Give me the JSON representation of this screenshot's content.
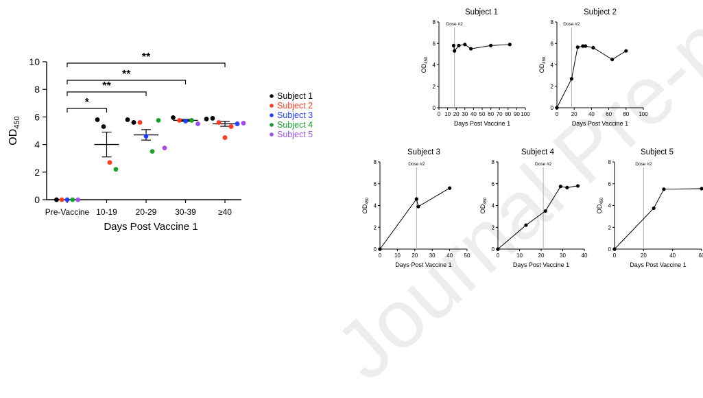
{
  "colors": {
    "subject_1": "#000000",
    "subject_2": "#ff3b1f",
    "subject_3": "#1f3fff",
    "subject_4": "#1aa02a",
    "subject_5": "#a050f0",
    "axis": "#000000",
    "dose_line": "#b0b0b0"
  },
  "watermark": "Journal Pre-proof",
  "chart_data": [
    {
      "type": "scatter",
      "ylabel_base": "OD",
      "ylabel_sub": "450",
      "xlabel": "Days Post Vaccine 1",
      "categories": [
        "Pre-Vaccine",
        "10-19",
        "20-29",
        "30-39",
        "≥40"
      ],
      "ylim": [
        0,
        10
      ],
      "yticks": [
        "0",
        "2",
        "4",
        "6",
        "8",
        "10"
      ],
      "legend_position": "right",
      "series": [
        {
          "name": "Subject 1",
          "color_key": "subject_1",
          "points": [
            [
              "Pre-Vaccine",
              0
            ],
            [
              "10-19",
              5.8
            ],
            [
              "10-19",
              5.3
            ],
            [
              "20-29",
              5.8
            ],
            [
              "20-29",
              5.6
            ],
            [
              "30-39",
              5.95
            ],
            [
              "≥40",
              5.85
            ],
            [
              "≥40",
              5.9
            ]
          ]
        },
        {
          "name": "Subject 2",
          "color_key": "subject_2",
          "points": [
            [
              "Pre-Vaccine",
              0
            ],
            [
              "10-19",
              2.7
            ],
            [
              "20-29",
              5.6
            ],
            [
              "30-39",
              5.75
            ],
            [
              "≥40",
              5.6
            ],
            [
              "≥40",
              4.5
            ],
            [
              "≥40",
              5.3
            ]
          ]
        },
        {
          "name": "Subject 3",
          "color_key": "subject_3",
          "points": [
            [
              "Pre-Vaccine",
              0
            ],
            [
              "20-29",
              4.6
            ],
            [
              "30-39",
              5.7
            ],
            [
              "≥40",
              5.5
            ]
          ]
        },
        {
          "name": "Subject 4",
          "color_key": "subject_4",
          "points": [
            [
              "Pre-Vaccine",
              0
            ],
            [
              "10-19",
              2.2
            ],
            [
              "20-29",
              3.5
            ],
            [
              "20-29",
              5.75
            ],
            [
              "30-39",
              5.75
            ]
          ]
        },
        {
          "name": "Subject 5",
          "color_key": "subject_5",
          "points": [
            [
              "Pre-Vaccine",
              0
            ],
            [
              "20-29",
              3.75
            ],
            [
              "30-39",
              5.5
            ],
            [
              "≥40",
              5.55
            ]
          ]
        }
      ],
      "summary": [
        {
          "category": "Pre-Vaccine",
          "mean": 0,
          "sem": 0
        },
        {
          "category": "10-19",
          "mean": 4.0,
          "sem": 0.9
        },
        {
          "category": "20-29",
          "mean": 4.7,
          "sem": 0.38
        },
        {
          "category": "30-39",
          "mean": 5.75,
          "sem": 0.08
        },
        {
          "category": "≥40",
          "mean": 5.5,
          "sem": 0.18
        }
      ],
      "significance": [
        {
          "from": "Pre-Vaccine",
          "to": "10-19",
          "label": "*"
        },
        {
          "from": "Pre-Vaccine",
          "to": "20-29",
          "label": "**"
        },
        {
          "from": "Pre-Vaccine",
          "to": "30-39",
          "label": "**"
        },
        {
          "from": "Pre-Vaccine",
          "to": "≥40",
          "label": "**"
        }
      ]
    },
    {
      "type": "line",
      "title": "Subject 1",
      "xlabel": "Days Post Vaccine 1",
      "ylabel_base": "OD",
      "ylabel_sub": "450",
      "xlim": [
        0,
        100
      ],
      "xticks": [
        0,
        10,
        20,
        30,
        40,
        50,
        60,
        70,
        80,
        90,
        100
      ],
      "ylim": [
        0,
        8
      ],
      "yticks": [
        0,
        2,
        4,
        6,
        8
      ],
      "dose_day": 18,
      "dose_label": "Dose #2",
      "x": [
        17,
        18,
        23,
        30,
        37,
        60,
        82
      ],
      "y": [
        5.8,
        5.3,
        5.8,
        5.9,
        5.5,
        5.8,
        5.9
      ]
    },
    {
      "type": "line",
      "title": "Subject 2",
      "xlabel": "Days Post Vaccine 1",
      "ylabel_base": "OD",
      "ylabel_sub": "450",
      "xlim": [
        0,
        100
      ],
      "xticks": [
        0,
        20,
        40,
        60,
        80,
        100
      ],
      "ylim": [
        0,
        8
      ],
      "yticks": [
        0,
        2,
        4,
        6,
        8
      ],
      "dose_day": 17,
      "dose_label": "Dose #2",
      "x": [
        0,
        17,
        24,
        30,
        33,
        42,
        64,
        80
      ],
      "y": [
        0,
        2.7,
        5.65,
        5.75,
        5.75,
        5.6,
        4.5,
        5.3
      ]
    },
    {
      "type": "line",
      "title": "Subject 3",
      "xlabel": "Days Post Vaccine 1",
      "ylabel_base": "OD",
      "ylabel_sub": "450",
      "xlim": [
        0,
        50
      ],
      "xticks": [
        0,
        10,
        20,
        30,
        40,
        50
      ],
      "ylim": [
        0,
        8
      ],
      "yticks": [
        0,
        2,
        4,
        6,
        8
      ],
      "dose_day": 21,
      "dose_label": "Dose #2",
      "x": [
        0,
        21,
        22,
        40
      ],
      "y": [
        0,
        4.6,
        3.9,
        5.6
      ]
    },
    {
      "type": "line",
      "title": "Subject 4",
      "xlabel": "Days Post Vaccine 1",
      "ylabel_base": "OD",
      "ylabel_sub": "450",
      "xlim": [
        0,
        40
      ],
      "xticks": [
        0,
        10,
        20,
        30,
        40
      ],
      "ylim": [
        0,
        8
      ],
      "yticks": [
        0,
        2,
        4,
        6,
        8
      ],
      "dose_day": 21,
      "dose_label": "Dose #2",
      "x": [
        0,
        13,
        22,
        29,
        32,
        37
      ],
      "y": [
        0,
        2.2,
        3.5,
        5.75,
        5.65,
        5.8
      ]
    },
    {
      "type": "line",
      "title": "Subject 5",
      "xlabel": "Days Post Vaccine 1",
      "ylabel_base": "OD",
      "ylabel_sub": "450",
      "xlim": [
        0,
        60
      ],
      "xticks": [
        0,
        20,
        40,
        60
      ],
      "ylim": [
        0,
        8
      ],
      "yticks": [
        0,
        2,
        4,
        6,
        8
      ],
      "dose_day": 20,
      "dose_label": "Dose #2",
      "x": [
        0,
        27,
        34,
        60
      ],
      "y": [
        0,
        3.75,
        5.5,
        5.55
      ]
    }
  ]
}
